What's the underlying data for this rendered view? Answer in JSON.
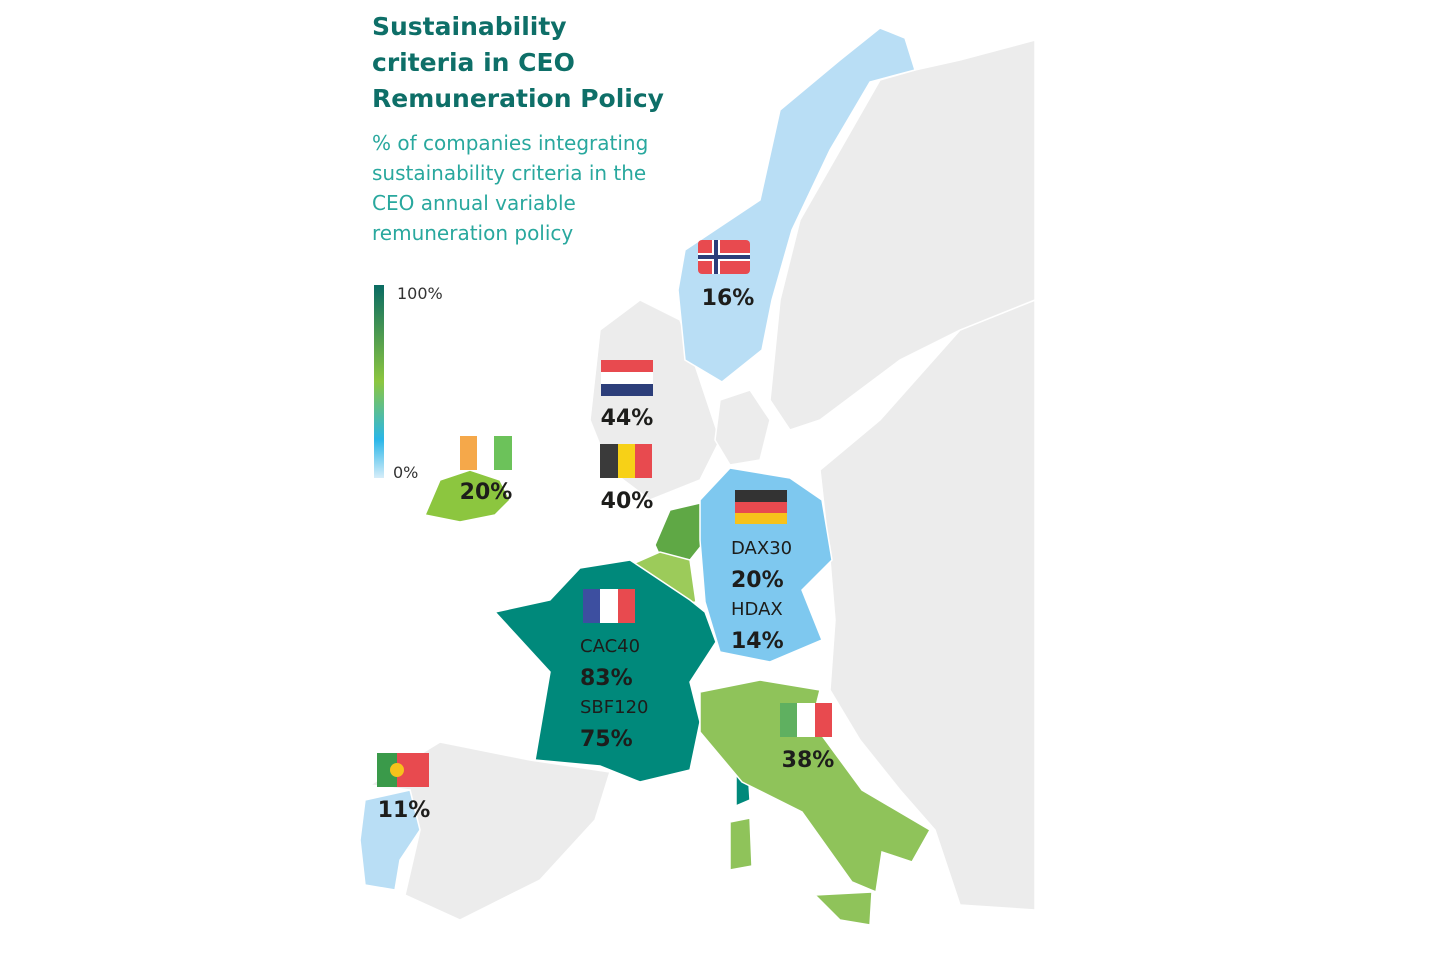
{
  "title_lines": [
    "Sustainability",
    "criteria in CEO",
    "Remuneration Policy"
  ],
  "subtitle_lines": [
    "% of companies integrating",
    "sustainability criteria in the",
    "CEO annual variable",
    "remuneration policy"
  ],
  "legend": {
    "max_label": "100%",
    "min_label": "0%"
  },
  "norway": {
    "value": "16%"
  },
  "netherlands": {
    "value": "44%"
  },
  "belgium": {
    "value": "40%"
  },
  "ireland": {
    "value": "20%"
  },
  "germany": {
    "indices": [
      {
        "name": "DAX30",
        "value": "20%"
      },
      {
        "name": "HDAX",
        "value": "14%"
      }
    ]
  },
  "france": {
    "indices": [
      {
        "name": "CAC40",
        "value": "83%"
      },
      {
        "name": "SBF120",
        "value": "75%"
      }
    ]
  },
  "italy": {
    "value": "38%"
  },
  "portugal": {
    "value": "11%"
  }
}
